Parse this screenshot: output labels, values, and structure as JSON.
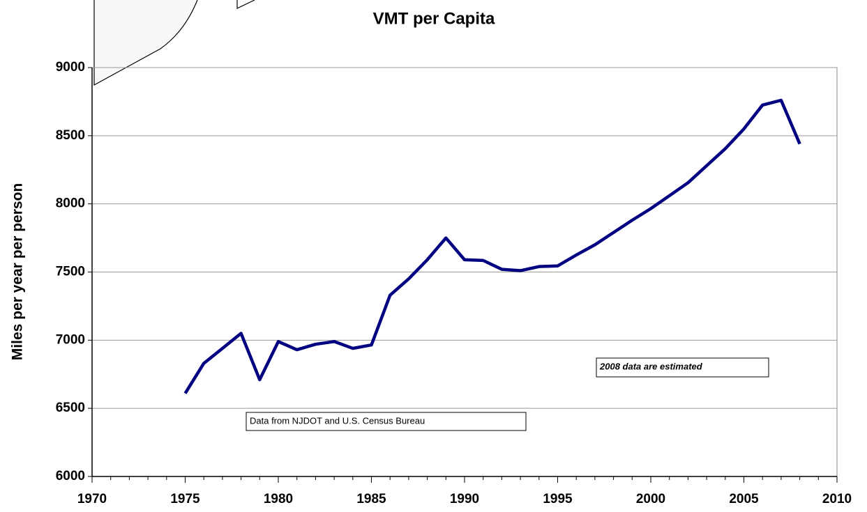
{
  "chart_data": {
    "type": "line",
    "title": "VMT per Capita",
    "y_label": "Miles per year per person",
    "annotations": [
      "Data from NJDOT and U.S. Census Bureau",
      "2008 data are estimated"
    ],
    "x": [
      1975,
      1976,
      1977,
      1978,
      1979,
      1980,
      1981,
      1982,
      1983,
      1984,
      1985,
      1986,
      1987,
      1988,
      1989,
      1990,
      1991,
      1992,
      1993,
      1994,
      1995,
      1996,
      1997,
      1998,
      1999,
      2000,
      2001,
      2002,
      2003,
      2004,
      2005,
      2006,
      2007,
      2008
    ],
    "series": [
      {
        "color": "#000080",
        "values": [
          6610,
          6830,
          6940,
          7050,
          6710,
          6990,
          6930,
          6970,
          6990,
          6940,
          6965,
          7330,
          7450,
          7590,
          7750,
          7590,
          7585,
          7520,
          7510,
          7540,
          7545,
          7625,
          7700,
          7790,
          7880,
          7965,
          8060,
          8155,
          8280,
          8405,
          8550,
          8725,
          8760,
          8440
        ]
      }
    ],
    "xlim": [
      1970,
      2010
    ],
    "xticks": [
      1970,
      1975,
      1980,
      1985,
      1990,
      1995,
      2000,
      2005,
      2010
    ],
    "ylim": [
      6000,
      9000
    ],
    "yticks": [
      6000,
      6500,
      7000,
      7500,
      8000,
      8500,
      9000
    ],
    "grid": true
  }
}
